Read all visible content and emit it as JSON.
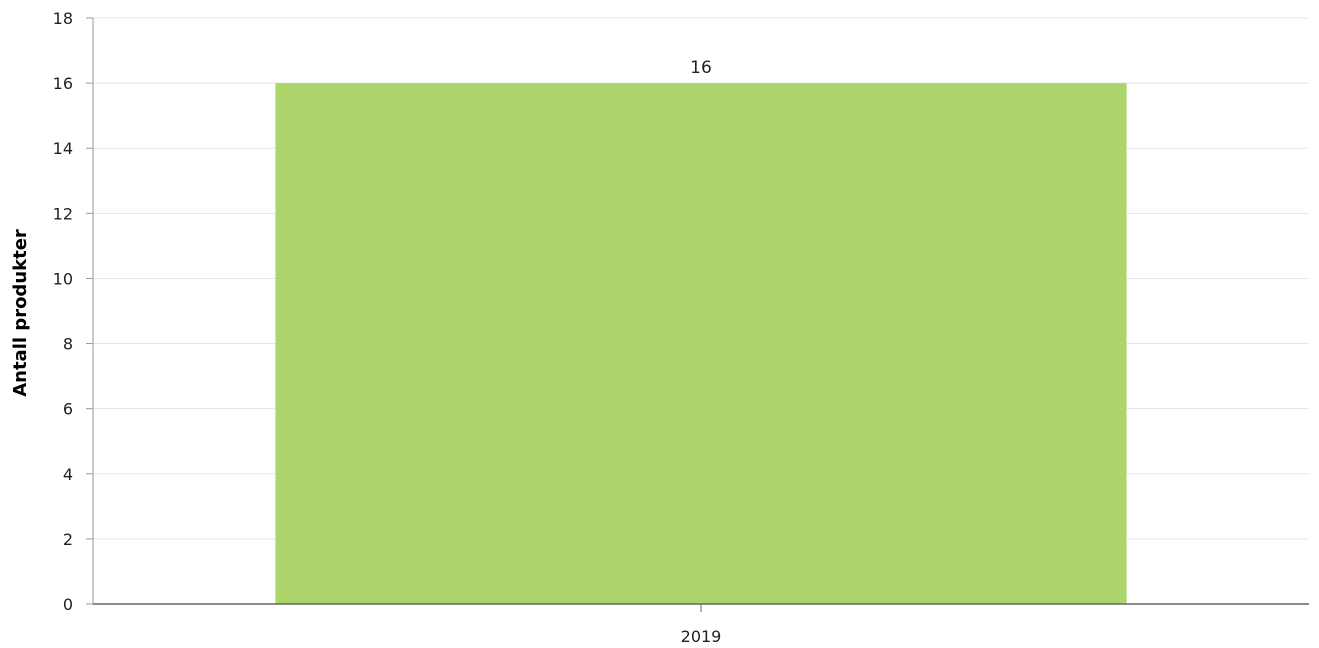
{
  "chart_data": {
    "type": "bar",
    "categories": [
      "2019"
    ],
    "values": [
      16
    ],
    "data_labels": [
      "16"
    ],
    "ylabel": "Antall produkter",
    "ylim": [
      0,
      18
    ],
    "y_ticks": [
      0,
      2,
      4,
      6,
      8,
      10,
      12,
      14,
      16,
      18
    ],
    "grid": true,
    "legend": "none",
    "colors": {
      "bar": "#add46a",
      "grid": "#e6e6e6",
      "axis": "#666666",
      "text": "#222222"
    }
  }
}
